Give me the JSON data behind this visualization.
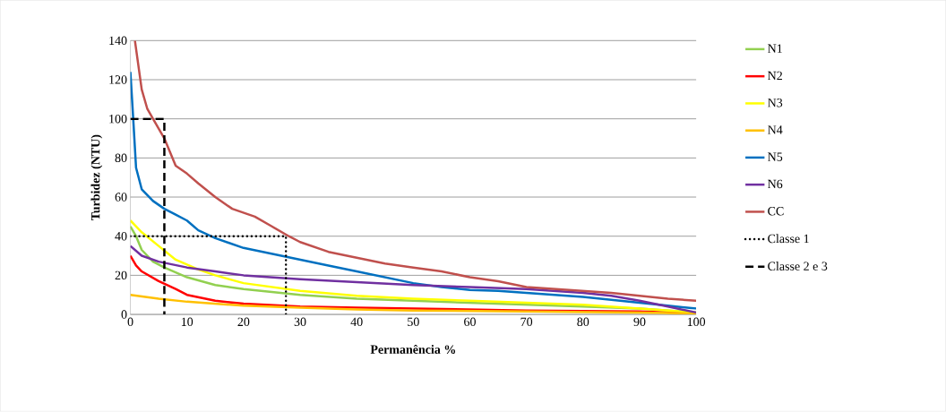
{
  "chart_data": {
    "type": "line",
    "xlabel": "Permanência %",
    "ylabel": "Turbidez (NTU)",
    "xlim": [
      0,
      100
    ],
    "xticks": [
      0,
      10,
      20,
      30,
      40,
      50,
      60,
      70,
      80,
      90,
      100
    ],
    "ylim": [
      0,
      140
    ],
    "yticks": [
      0,
      20,
      40,
      60,
      80,
      100,
      120,
      140
    ],
    "grid": "y",
    "legend": "right",
    "marker": "none",
    "series": [
      {
        "name": "N1",
        "color": "#92d050",
        "x": [
          0,
          1,
          2,
          4,
          6,
          10,
          15,
          20,
          30,
          40,
          50,
          60,
          70,
          80,
          90,
          100
        ],
        "values": [
          45,
          40,
          33,
          27,
          24,
          19,
          15,
          13,
          10,
          8,
          7,
          6,
          5,
          4,
          3,
          1
        ]
      },
      {
        "name": "N2",
        "color": "#ff0000",
        "x": [
          0,
          1,
          2,
          5,
          8,
          10,
          15,
          20,
          30,
          40,
          50,
          60,
          70,
          80,
          90,
          100
        ],
        "values": [
          30,
          25,
          22,
          17,
          13,
          10,
          7,
          5.5,
          4,
          3.5,
          3,
          2.5,
          2,
          1.8,
          1.5,
          0.5
        ]
      },
      {
        "name": "N3",
        "color": "#ffff00",
        "x": [
          0,
          2,
          5,
          8,
          12,
          15,
          20,
          30,
          40,
          50,
          60,
          70,
          80,
          90,
          100
        ],
        "values": [
          48,
          42,
          35,
          28,
          23,
          20,
          16,
          12,
          9.5,
          8,
          7,
          6,
          5,
          3,
          1
        ]
      },
      {
        "name": "N4",
        "color": "#ffc000",
        "x": [
          0,
          5,
          10,
          20,
          30,
          40,
          50,
          70,
          90,
          100
        ],
        "values": [
          10,
          8,
          6.5,
          4.5,
          3.5,
          2.5,
          2,
          1.5,
          1,
          0.5
        ]
      },
      {
        "name": "N5",
        "color": "#0070c0",
        "x": [
          0,
          0.5,
          1,
          2,
          4,
          6,
          8,
          10,
          12,
          15,
          20,
          25,
          30,
          35,
          40,
          45,
          50,
          55,
          60,
          65,
          70,
          75,
          80,
          85,
          90,
          95,
          100
        ],
        "values": [
          124,
          100,
          75,
          64,
          58,
          54,
          51,
          48,
          43,
          39,
          34,
          31,
          28,
          25,
          22,
          19,
          16,
          14,
          12.5,
          12,
          11,
          10,
          9,
          7.5,
          6,
          4.5,
          3
        ]
      },
      {
        "name": "N6",
        "color": "#7030a0",
        "x": [
          0,
          2,
          5,
          10,
          15,
          20,
          30,
          40,
          50,
          60,
          70,
          80,
          85,
          90,
          95,
          100
        ],
        "values": [
          35,
          30,
          27,
          24,
          22,
          20,
          18,
          16.5,
          15,
          14,
          13,
          11,
          9.5,
          7,
          4,
          1
        ]
      },
      {
        "name": "CC",
        "color": "#c0504d",
        "x": [
          0.8,
          2,
          3,
          5,
          6,
          8,
          10,
          12,
          15,
          18,
          22,
          25,
          28,
          30,
          35,
          40,
          45,
          50,
          55,
          60,
          65,
          70,
          75,
          80,
          85,
          90,
          95,
          100
        ],
        "values": [
          140,
          115,
          105,
          95,
          90,
          76,
          72,
          67,
          60,
          54,
          50,
          45,
          40,
          37,
          32,
          29,
          26,
          24,
          22,
          19,
          17,
          14,
          13,
          12,
          11,
          9.5,
          8,
          7
        ]
      },
      {
        "name": "Classe 1",
        "color": "#000000",
        "line_style": "dotted",
        "x": [
          0,
          27.5,
          27.5
        ],
        "values": [
          40,
          40,
          0
        ]
      },
      {
        "name": "Classe 2 e 3",
        "color": "#000000",
        "line_style": "dashed",
        "x": [
          0,
          6,
          6
        ],
        "values": [
          100,
          100,
          0
        ]
      }
    ]
  }
}
